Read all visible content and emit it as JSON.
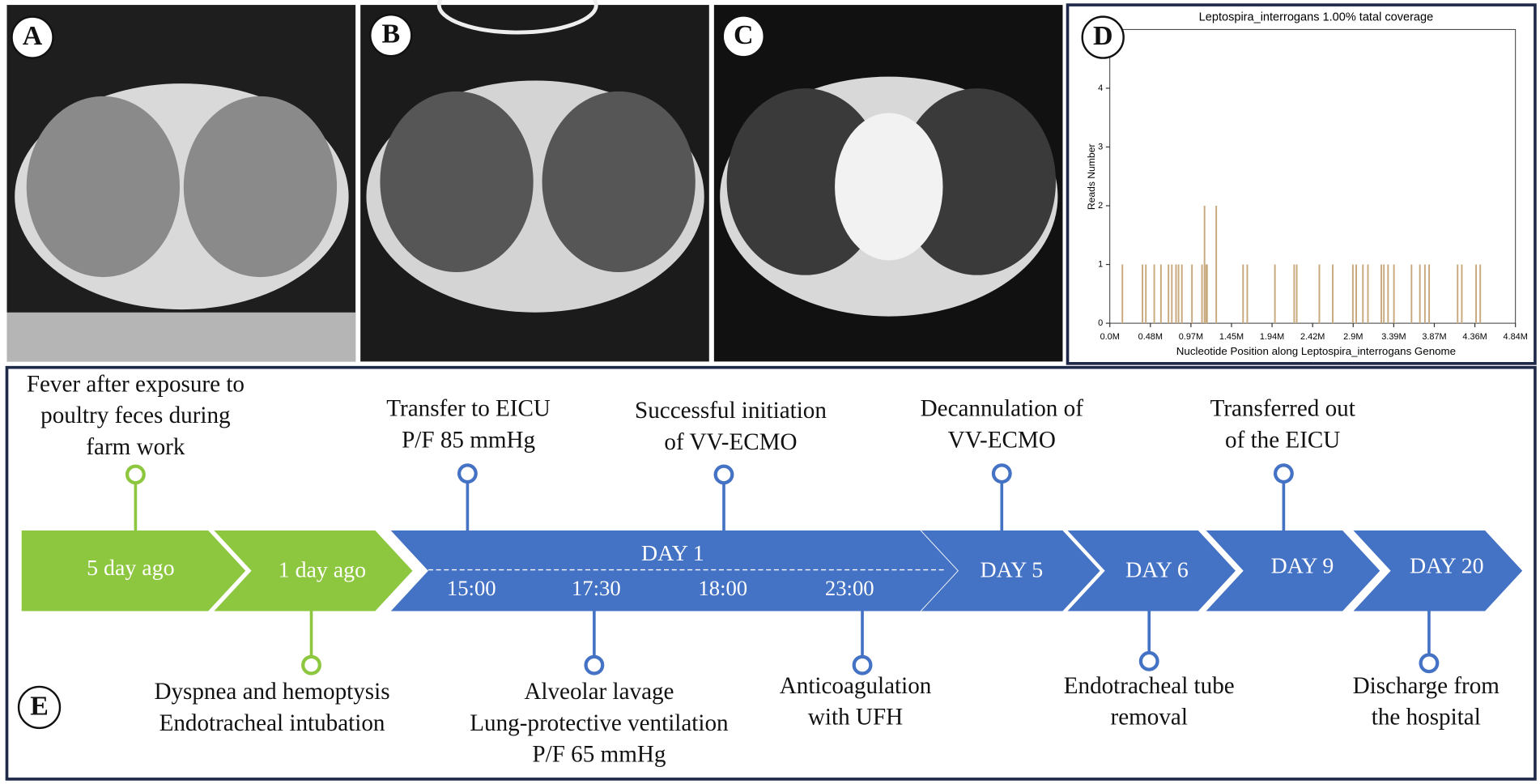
{
  "panels": {
    "labels": [
      "A",
      "B",
      "C",
      "D",
      "E"
    ]
  },
  "chart_data": {
    "type": "bar",
    "title": "Leptospira_interrogans 1.00% tatal coverage",
    "x_label": "Nucleotide Position along Leptospira_interrogans Genome",
    "y_label": "Reads Number",
    "color": "#c8a97e",
    "x": [
      150000,
      390000,
      430000,
      530000,
      610000,
      700000,
      740000,
      790000,
      820000,
      860000,
      980000,
      1100000,
      1130000,
      1150000,
      1160000,
      1270000,
      1590000,
      1640000,
      1970000,
      2200000,
      2230000,
      2500000,
      2660000,
      2900000,
      2940000,
      3020000,
      3080000,
      3240000,
      3270000,
      3320000,
      3390000,
      3600000,
      3700000,
      3760000,
      3810000,
      4150000,
      4200000,
      4370000,
      4420000
    ],
    "values": [
      1,
      1,
      1,
      1,
      1,
      1,
      1,
      1,
      1,
      1,
      1,
      1,
      2,
      1,
      1,
      2,
      1,
      1,
      1,
      1,
      1,
      1,
      1,
      1,
      1,
      1,
      1,
      1,
      1,
      1,
      1,
      1,
      1,
      1,
      1,
      1,
      1,
      1,
      1
    ],
    "xlim": [
      0,
      4840000
    ],
    "xticks": [
      {
        "value": 0,
        "label": "0.0M"
      },
      {
        "value": 484000,
        "label": "0.48M"
      },
      {
        "value": 968000,
        "label": "0.97M"
      },
      {
        "value": 1452000,
        "label": "1.45M"
      },
      {
        "value": 1936000,
        "label": "1.94M"
      },
      {
        "value": 2420000,
        "label": "2.42M"
      },
      {
        "value": 2904000,
        "label": "2.9M"
      },
      {
        "value": 3388000,
        "label": "3.39M"
      },
      {
        "value": 3872000,
        "label": "3.87M"
      },
      {
        "value": 4356000,
        "label": "4.36M"
      },
      {
        "value": 4840000,
        "label": "4.84M"
      }
    ],
    "ylim": [
      0,
      5
    ],
    "yticks": [
      0,
      1,
      2,
      3,
      4
    ]
  },
  "timeline": {
    "stages": [
      "5 day ago",
      "1 day ago",
      "DAY 1",
      "DAY 5",
      "DAY 6",
      "DAY 9",
      "DAY 20"
    ],
    "times": [
      "15:00",
      "17:30",
      "18:00",
      "23:00"
    ],
    "events_above": [
      [
        "Fever after exposure to",
        "poultry feces during",
        "farm work"
      ],
      [
        "Transfer to EICU",
        "P/F 85 mmHg"
      ],
      [
        "Successful initiation",
        "of VV-ECMO"
      ],
      [
        "Decannulation of",
        "VV-ECMO"
      ],
      [
        "Transferred out",
        "of the EICU"
      ]
    ],
    "events_below": [
      [
        "Dyspnea and hemoptysis",
        "Endotracheal intubation"
      ],
      [
        "Alveolar lavage",
        "Lung-protective ventilation",
        "P/F 65 mmHg"
      ],
      [
        "Anticoagulation",
        "with UFH"
      ],
      [
        "Endotracheal tube",
        "removal"
      ],
      [
        "Discharge from",
        "the hospital"
      ]
    ]
  }
}
